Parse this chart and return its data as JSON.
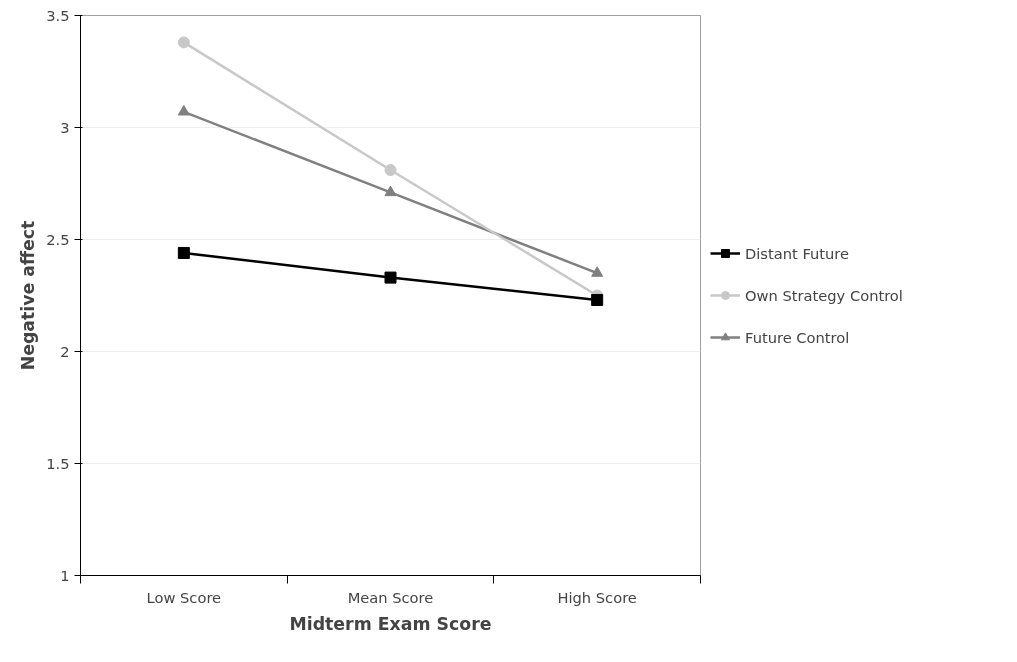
{
  "chart_data": {
    "type": "line",
    "xlabel": "Midterm Exam Score",
    "ylabel": "Negative affect",
    "categories": [
      "Low Score",
      "Mean Score",
      "High Score"
    ],
    "series": [
      {
        "name": "Distant Future",
        "color": "#000000",
        "marker": "square",
        "values": [
          2.44,
          2.33,
          2.23
        ]
      },
      {
        "name": "Own Strategy Control",
        "color": "#c8c8c8",
        "marker": "circle",
        "values": [
          3.38,
          2.81,
          2.25
        ]
      },
      {
        "name": "Future Control",
        "color": "#808080",
        "marker": "triangle",
        "values": [
          3.07,
          2.71,
          2.35
        ]
      }
    ],
    "ylim": [
      1,
      3.5
    ],
    "yticks": [
      1,
      1.5,
      2,
      2.5,
      3,
      3.5
    ],
    "grid": "y",
    "legend": "right"
  }
}
